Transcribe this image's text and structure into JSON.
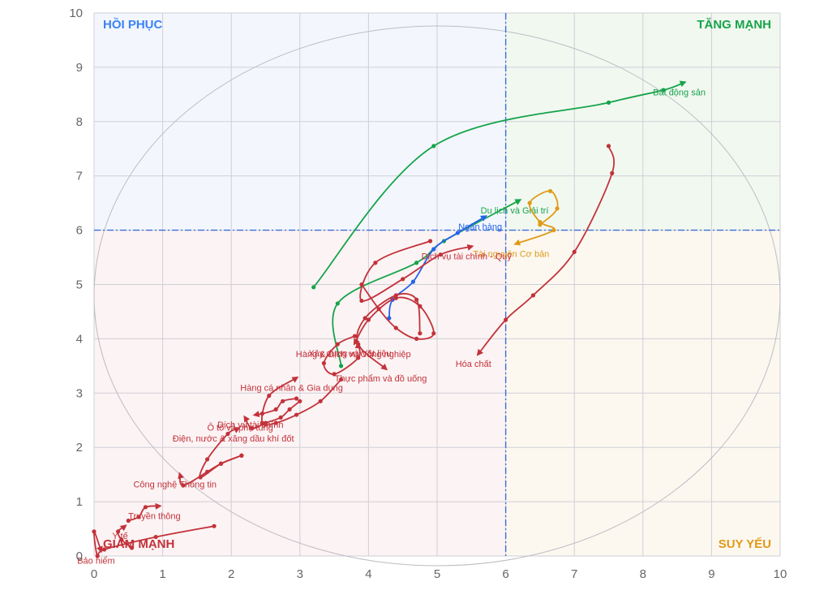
{
  "chart_data": {
    "type": "scatter",
    "title": "",
    "xlabel": "",
    "ylabel": "",
    "xlim": [
      0,
      10
    ],
    "ylim": [
      0,
      10
    ],
    "x_ticks": [
      "0",
      "1",
      "2",
      "3",
      "4",
      "5",
      "6",
      "7",
      "8",
      "9",
      "10"
    ],
    "y_ticks": [
      "0",
      "1",
      "2",
      "3",
      "4",
      "5",
      "6",
      "7",
      "8",
      "9",
      "10"
    ],
    "grid": true,
    "reference_lines": {
      "x": 6,
      "y": 6
    },
    "quadrants": [
      {
        "label": "HỒI PHỤC",
        "position": "top-left",
        "text_color": "#3b82f6",
        "fill": "#f3f7fd"
      },
      {
        "label": "TĂNG MẠNH",
        "position": "top-right",
        "text_color": "#16a34a",
        "fill": "#f1f8f0"
      },
      {
        "label": "GIẢM MẠNH",
        "position": "bottom-left",
        "text_color": "#c2323a",
        "fill": "#fcf3f4"
      },
      {
        "label": "SUY YẾU",
        "position": "bottom-right",
        "text_color": "#e09a17",
        "fill": "#fcf8f0"
      }
    ],
    "series": [
      {
        "name": "Bất động sản",
        "color": "#16a34a",
        "x": [
          3.2,
          4.95,
          7.5,
          8.3,
          8.6
        ],
        "y": [
          4.95,
          7.55,
          8.35,
          8.58,
          8.72
        ]
      },
      {
        "name": "Du lịch và Giải trí",
        "color": "#16a34a",
        "x": [
          3.6,
          3.55,
          4.7,
          5.1,
          6.2
        ],
        "y": [
          3.5,
          4.65,
          5.4,
          5.8,
          6.55
        ]
      },
      {
        "name": "Tài nguyên Cơ bản",
        "color": "#e09a17",
        "x": [
          6.5,
          6.75,
          6.65,
          6.35,
          6.5,
          6.7,
          6.15
        ],
        "y": [
          6.1,
          6.4,
          6.72,
          6.5,
          6.15,
          6.0,
          5.75
        ]
      },
      {
        "name": "Hóa chất",
        "color": "#c2323a",
        "x": [
          7.5,
          7.55,
          7.0,
          6.4,
          6.0,
          5.6
        ],
        "y": [
          7.55,
          7.05,
          5.6,
          4.8,
          4.35,
          3.72
        ]
      },
      {
        "name": "Ngân hàng",
        "color": "#2563eb",
        "x": [
          4.3,
          4.35,
          4.65,
          4.95,
          5.3,
          5.7
        ],
        "y": [
          4.38,
          4.72,
          5.05,
          5.65,
          5.95,
          6.25
        ]
      },
      {
        "name": "Dịch vụ tài chính - Quỹ",
        "color": "#c2323a",
        "x": [
          4.9,
          4.1,
          3.9,
          4.5,
          5.05,
          5.5
        ],
        "y": [
          5.8,
          5.4,
          4.7,
          5.1,
          5.55,
          5.7
        ]
      },
      {
        "name": "Thực phẩm và đồ uống",
        "color": "#c2323a",
        "x": [
          4.75,
          4.7,
          4.4,
          3.95,
          3.85,
          4.25
        ],
        "y": [
          4.1,
          4.72,
          4.8,
          4.38,
          3.9,
          3.45
        ]
      },
      {
        "name": "Xây dựng và Vật liệu",
        "color": "#c2323a",
        "x": [
          3.9,
          4.15,
          4.4,
          4.7,
          4.95,
          4.75,
          4.4,
          4.0,
          3.8
        ],
        "y": [
          5.0,
          4.55,
          4.2,
          4.0,
          4.1,
          4.6,
          4.75,
          4.35,
          3.92
        ]
      },
      {
        "name": "Hàng & Dịch vụ Công nghiệp",
        "color": "#c2323a",
        "x": [
          3.8,
          3.55,
          3.35,
          3.5,
          3.85,
          3.85
        ],
        "y": [
          4.05,
          3.9,
          3.55,
          3.35,
          3.65,
          3.9
        ]
      },
      {
        "name": "Hàng cá nhân & Gia dụng",
        "color": "#c2323a",
        "x": [
          3.6,
          3.3,
          2.95,
          2.65,
          2.45,
          2.55,
          2.95
        ],
        "y": [
          3.25,
          2.85,
          2.6,
          2.45,
          2.45,
          2.95,
          3.28
        ]
      },
      {
        "name": "Dịch vụ tài chính",
        "color": "#c2323a",
        "x": [
          2.95,
          2.75,
          2.65,
          2.45,
          2.35
        ],
        "y": [
          2.9,
          2.85,
          2.7,
          2.62,
          2.6
        ]
      },
      {
        "name": "Ô tô và phụ tùng",
        "color": "#c2323a",
        "x": [
          3.0,
          2.85,
          2.72,
          2.5,
          2.3,
          2.2
        ],
        "y": [
          2.85,
          2.7,
          2.55,
          2.45,
          2.35,
          2.55
        ]
      },
      {
        "name": "Điện, nước & xăng dầu khí đốt",
        "color": "#c2323a",
        "x": [
          2.15,
          1.85,
          1.55,
          1.65,
          1.95,
          2.1
        ],
        "y": [
          1.85,
          1.7,
          1.45,
          1.78,
          2.25,
          2.35
        ]
      },
      {
        "name": "Công nghệ Thông tin",
        "color": "#c2323a",
        "x": [
          2.15,
          1.85,
          1.65,
          1.3,
          1.25
        ],
        "y": [
          1.85,
          1.7,
          1.55,
          1.3,
          1.5
        ]
      },
      {
        "name": "Truyền thông",
        "color": "#c2323a",
        "x": [
          0.5,
          0.65,
          0.75,
          0.95
        ],
        "y": [
          0.65,
          0.72,
          0.9,
          0.92
        ]
      },
      {
        "name": "Y tế",
        "color": "#c2323a",
        "x": [
          0.55,
          0.4,
          0.35,
          0.45
        ],
        "y": [
          0.15,
          0.3,
          0.45,
          0.55
        ]
      },
      {
        "name": "Bảo hiểm",
        "color": "#c2323a",
        "x": [
          1.75,
          0.9,
          0.15,
          0.05,
          0.0,
          0.1
        ],
        "y": [
          0.55,
          0.35,
          0.12,
          0.0,
          0.45,
          0.1
        ]
      }
    ]
  }
}
